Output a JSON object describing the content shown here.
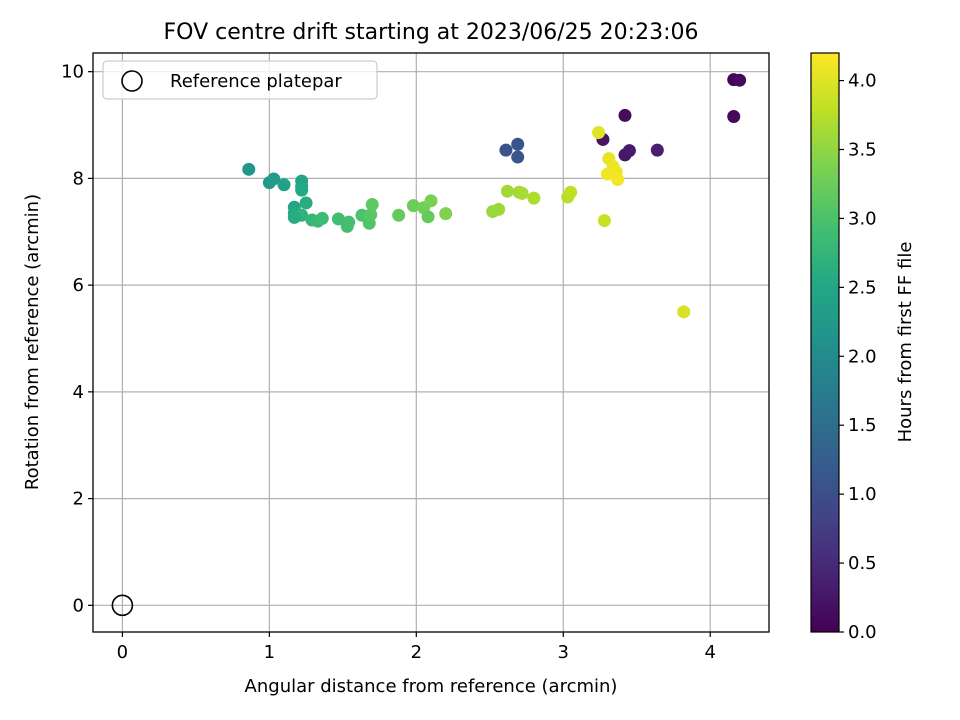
{
  "chart_data": {
    "type": "scatter",
    "title": "FOV centre drift starting at 2023/06/25 20:23:06",
    "xlabel": "Angular distance from reference (arcmin)",
    "ylabel": "Rotation from reference (arcmin)",
    "xlim": [
      -0.2,
      4.4
    ],
    "ylim": [
      -0.5,
      10.35
    ],
    "xticks": [
      0,
      1,
      2,
      3,
      4
    ],
    "xtick_labels": [
      "0",
      "1",
      "2",
      "3",
      "4"
    ],
    "yticks": [
      0,
      2,
      4,
      6,
      8,
      10
    ],
    "ytick_labels": [
      "0",
      "2",
      "4",
      "6",
      "8",
      "10"
    ],
    "grid": true,
    "colormap": "viridis",
    "colorbar": {
      "label": "Hours from first FF file",
      "min": 0.0,
      "max": 4.2,
      "ticks": [
        0.0,
        0.5,
        1.0,
        1.5,
        2.0,
        2.5,
        3.0,
        3.5,
        4.0
      ],
      "tick_labels": [
        "0.0",
        "0.5",
        "1.0",
        "1.5",
        "2.0",
        "2.5",
        "3.0",
        "3.5",
        "4.0"
      ]
    },
    "legend": {
      "position": "top-left",
      "entries": [
        "Reference platepar"
      ]
    },
    "reference_point": {
      "x": 0.0,
      "y": 0.0,
      "label": "Reference platepar"
    },
    "series": [
      {
        "x": [
          4.16,
          4.2,
          4.16,
          3.42,
          3.27,
          3.42,
          3.45,
          3.64,
          2.61,
          2.69,
          2.69,
          0.86,
          1.0,
          1.03,
          1.1,
          1.22,
          1.22,
          1.22,
          1.17,
          1.25,
          1.17,
          1.22,
          1.17,
          1.29,
          1.33,
          1.36,
          1.47,
          1.53,
          1.54,
          1.63,
          1.68,
          1.69,
          1.7,
          1.88,
          1.98,
          2.05,
          2.08,
          2.1,
          2.2,
          2.52,
          2.56,
          2.62,
          2.7,
          2.72,
          2.8,
          3.03,
          3.05,
          3.24,
          3.28,
          3.31,
          3.34,
          3.36,
          3.3,
          3.37,
          3.82
        ],
        "y": [
          9.85,
          9.84,
          9.16,
          9.18,
          8.73,
          8.44,
          8.52,
          8.53,
          8.53,
          8.64,
          8.4,
          8.17,
          7.92,
          7.99,
          7.88,
          7.95,
          7.85,
          7.78,
          7.46,
          7.54,
          7.35,
          7.31,
          7.27,
          7.22,
          7.2,
          7.25,
          7.24,
          7.1,
          7.18,
          7.31,
          7.16,
          7.32,
          7.51,
          7.31,
          7.49,
          7.45,
          7.28,
          7.58,
          7.34,
          7.38,
          7.42,
          7.76,
          7.74,
          7.72,
          7.63,
          7.65,
          7.74,
          8.86,
          7.21,
          8.37,
          8.22,
          8.12,
          8.08,
          7.98,
          5.5
        ],
        "c": [
          0.05,
          0.08,
          0.1,
          0.12,
          0.22,
          0.25,
          0.3,
          0.35,
          1.05,
          1.1,
          1.12,
          2.2,
          2.25,
          2.3,
          2.4,
          2.45,
          2.5,
          2.55,
          2.45,
          2.6,
          2.55,
          2.7,
          2.6,
          2.75,
          2.8,
          2.85,
          2.9,
          2.95,
          2.95,
          3.0,
          3.05,
          3.1,
          3.15,
          3.2,
          3.25,
          3.3,
          3.2,
          3.35,
          3.4,
          3.55,
          3.58,
          3.6,
          3.62,
          3.65,
          3.68,
          3.75,
          3.78,
          4.0,
          3.85,
          4.05,
          4.08,
          4.1,
          4.12,
          4.15,
          3.95
        ]
      }
    ]
  }
}
